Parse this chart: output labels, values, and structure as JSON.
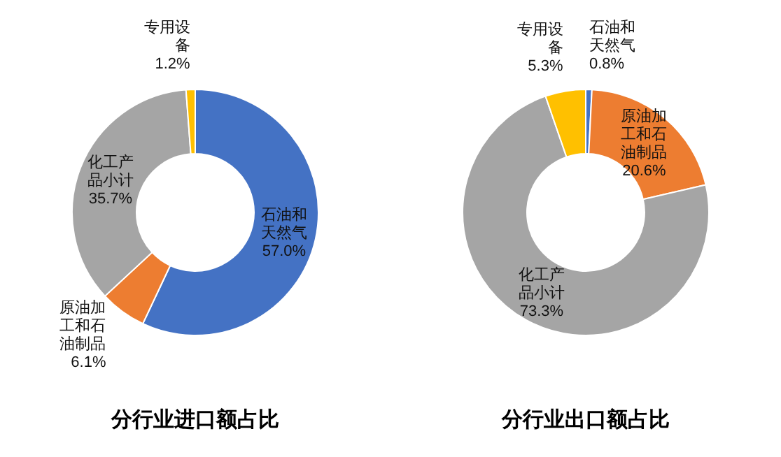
{
  "chart_data": [
    {
      "type": "donut",
      "title": "分行业进口额占比",
      "categories": [
        "石油和天然气",
        "原油加工和石油制品",
        "化工产品小计",
        "专用设备"
      ],
      "values": [
        57.0,
        6.1,
        35.7,
        1.2
      ],
      "value_labels": [
        "57.0%",
        "6.1%",
        "35.7%",
        "1.2%"
      ],
      "colors": [
        "#4472c4",
        "#ed7d31",
        "#a5a5a5",
        "#ffc000"
      ]
    },
    {
      "type": "donut",
      "title": "分行业出口额占比",
      "categories": [
        "石油和天然气",
        "原油加工和石油制品",
        "化工产品小计",
        "专用设备"
      ],
      "values": [
        0.8,
        20.6,
        73.3,
        5.3
      ],
      "value_labels": [
        "0.8%",
        "20.6%",
        "73.3%",
        "5.3%"
      ],
      "colors": [
        "#4472c4",
        "#ed7d31",
        "#a5a5a5",
        "#ffc000"
      ]
    }
  ]
}
